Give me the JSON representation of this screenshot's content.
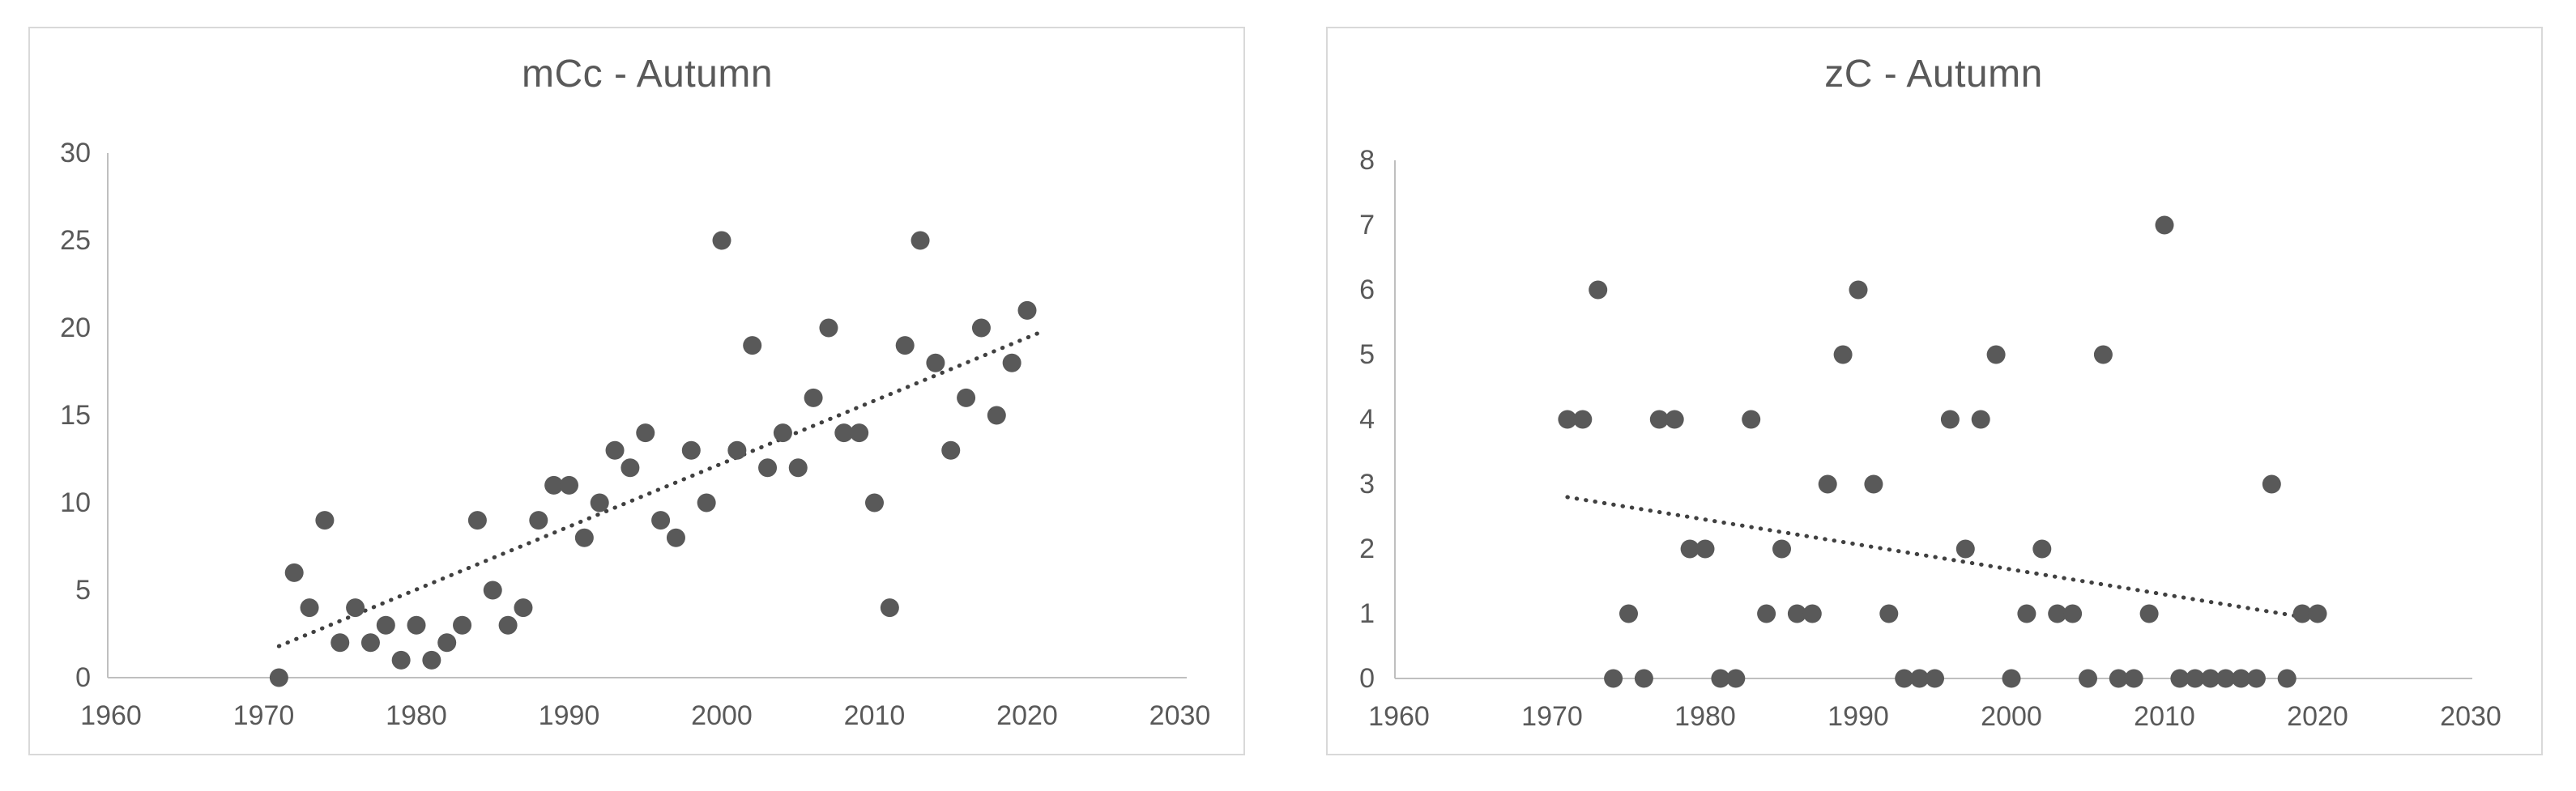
{
  "colors": {
    "marker": "#595959",
    "trendline": "#404040",
    "axis_line": "#bfbfbf",
    "panel_border": "#d9d9d9",
    "tick_label": "#595959",
    "title_text": "#595959",
    "background": "#ffffff"
  },
  "chart_data": [
    {
      "type": "scatter",
      "title": "mCc - Autumn",
      "xlabel": "",
      "ylabel": "",
      "xlim": [
        1960,
        2030
      ],
      "ylim": [
        0,
        30
      ],
      "xticks": [
        1960,
        1970,
        1980,
        1990,
        2000,
        2010,
        2020,
        2030
      ],
      "yticks": [
        0,
        5,
        10,
        15,
        20,
        25,
        30
      ],
      "grid": false,
      "legend": "none",
      "marker": "circle",
      "x": [
        1971,
        1972,
        1973,
        1974,
        1975,
        1976,
        1977,
        1978,
        1979,
        1980,
        1981,
        1982,
        1983,
        1984,
        1985,
        1986,
        1987,
        1988,
        1989,
        1990,
        1991,
        1992,
        1993,
        1994,
        1995,
        1996,
        1997,
        1998,
        1999,
        2000,
        2001,
        2002,
        2003,
        2004,
        2005,
        2006,
        2007,
        2008,
        2009,
        2010,
        2011,
        2012,
        2013,
        2014,
        2015,
        2016,
        2017,
        2018,
        2019,
        2020
      ],
      "y": [
        0,
        6,
        4,
        9,
        2,
        4,
        2,
        3,
        1,
        3,
        1,
        2,
        3,
        9,
        5,
        3,
        4,
        9,
        11,
        11,
        8,
        10,
        13,
        12,
        14,
        9,
        8,
        13,
        10,
        25,
        13,
        19,
        12,
        14,
        12,
        16,
        20,
        14,
        14,
        10,
        4,
        19,
        25,
        18,
        13,
        16,
        20,
        15,
        18,
        21
      ],
      "trendline": {
        "style": "dotted",
        "x1": 1971,
        "y1": 1.8,
        "x2": 2021,
        "y2": 19.8
      }
    },
    {
      "type": "scatter",
      "title": "zC - Autumn",
      "xlabel": "",
      "ylabel": "",
      "xlim": [
        1960,
        2030
      ],
      "ylim": [
        0,
        8
      ],
      "xticks": [
        1960,
        1970,
        1980,
        1990,
        2000,
        2010,
        2020,
        2030
      ],
      "yticks": [
        0,
        1,
        2,
        3,
        4,
        5,
        6,
        7,
        8
      ],
      "grid": false,
      "legend": "none",
      "marker": "circle",
      "x": [
        1971,
        1972,
        1973,
        1974,
        1975,
        1976,
        1977,
        1978,
        1979,
        1980,
        1981,
        1982,
        1983,
        1984,
        1985,
        1986,
        1987,
        1988,
        1989,
        1990,
        1991,
        1992,
        1993,
        1994,
        1995,
        1996,
        1997,
        1998,
        1999,
        2000,
        2001,
        2002,
        2003,
        2004,
        2005,
        2006,
        2007,
        2008,
        2009,
        2010,
        2011,
        2012,
        2013,
        2014,
        2015,
        2016,
        2017,
        2018,
        2019,
        2020
      ],
      "y": [
        4,
        4,
        6,
        0,
        1,
        0,
        4,
        4,
        2,
        2,
        0,
        0,
        4,
        1,
        2,
        1,
        1,
        3,
        5,
        6,
        3,
        1,
        0,
        0,
        0,
        4,
        2,
        4,
        5,
        0,
        1,
        2,
        1,
        1,
        0,
        5,
        0,
        0,
        1,
        7,
        0,
        0,
        0,
        0,
        0,
        0,
        3,
        0,
        1,
        1
      ],
      "trendline": {
        "style": "dotted",
        "x1": 1971,
        "y1": 2.8,
        "x2": 2019,
        "y2": 0.95
      }
    }
  ]
}
